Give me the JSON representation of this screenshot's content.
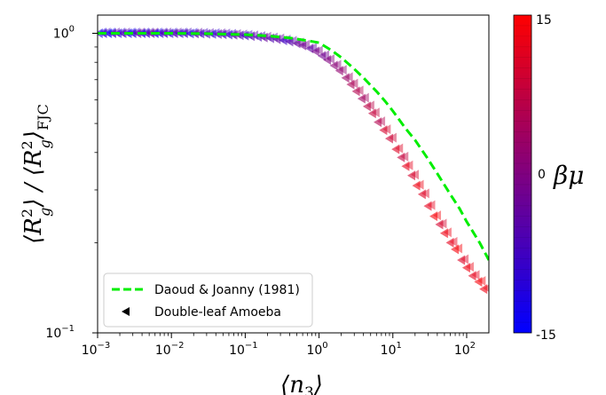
{
  "chart_data": {
    "type": "scatter",
    "xscale": "log",
    "yscale": "log",
    "xlim": [
      0.001,
      200
    ],
    "ylim": [
      0.1,
      1.15
    ],
    "x_ticks": [
      {
        "value": 0.001,
        "base": "10",
        "exp": "−3"
      },
      {
        "value": 0.01,
        "base": "10",
        "exp": "−2"
      },
      {
        "value": 0.1,
        "base": "10",
        "exp": "−1"
      },
      {
        "value": 1,
        "base": "10",
        "exp": "0"
      },
      {
        "value": 10,
        "base": "10",
        "exp": "1"
      },
      {
        "value": 100,
        "base": "10",
        "exp": "2"
      }
    ],
    "y_ticks": [
      {
        "value": 0.1,
        "base": "10",
        "exp": "−1"
      },
      {
        "value": 1,
        "base": "10",
        "exp": "0"
      }
    ],
    "xlabel": "⟨n₃⟩",
    "ylabel": "⟨R²g⟩ / ⟨R²g⟩FJC",
    "grid": false,
    "legend": {
      "placement": "lower-left",
      "entries": [
        {
          "label": "Daoud & Joanny (1981)",
          "style": "dashed-line",
          "color": "#00ee00"
        },
        {
          "label": "Double-leaf Amoeba",
          "style": "left-triangle-marker",
          "color": "#000000"
        }
      ]
    },
    "colorbar": {
      "label": "βμ",
      "min": -15,
      "max": 15,
      "min_label": "-15",
      "mid_label": "0",
      "max_label": "15",
      "colors": [
        "#0000ff",
        "#ff0000"
      ]
    },
    "series": [
      {
        "name": "Daoud & Joanny (1981)",
        "kind": "curve",
        "color": "#00ee00",
        "x": [
          0.001,
          0.003,
          0.01,
          0.03,
          0.1,
          0.2,
          0.4,
          0.7,
          1,
          1.5,
          2,
          3,
          4,
          6,
          8,
          10,
          15,
          20,
          30,
          40,
          60,
          80,
          100,
          150,
          200
        ],
        "y": [
          1.0,
          1.0,
          1.0,
          0.997,
          0.99,
          0.98,
          0.965,
          0.945,
          0.93,
          0.875,
          0.83,
          0.76,
          0.71,
          0.64,
          0.59,
          0.55,
          0.48,
          0.44,
          0.38,
          0.34,
          0.29,
          0.26,
          0.235,
          0.2,
          0.175
        ]
      },
      {
        "name": "Double-leaf Amoeba",
        "kind": "scatter",
        "marker": "left-triangle",
        "x": [
          0.00105,
          0.0012,
          0.0014,
          0.0016,
          0.0019,
          0.0022,
          0.0026,
          0.003,
          0.0035,
          0.004,
          0.0046,
          0.0053,
          0.006,
          0.007,
          0.008,
          0.0095,
          0.011,
          0.013,
          0.015,
          0.018,
          0.021,
          0.025,
          0.03,
          0.036,
          0.043,
          0.05,
          0.06,
          0.07,
          0.085,
          0.1,
          0.12,
          0.15,
          0.18,
          0.22,
          0.27,
          0.33,
          0.4,
          0.5,
          0.6,
          0.75,
          0.9,
          1.1,
          1.3,
          1.6,
          1.9,
          2.3,
          2.7,
          3.2,
          3.8,
          4.5,
          5.3,
          6.3,
          7.5,
          9,
          11,
          13,
          15,
          18,
          21,
          25,
          30,
          36,
          43,
          50,
          60,
          70,
          85,
          100,
          120,
          145,
          170
        ],
        "y": [
          1.0,
          1.0,
          1.0,
          1.0,
          1.0,
          1.0,
          1.0,
          1.0,
          1.0,
          1.0,
          1.0,
          1.0,
          1.0,
          1.0,
          1.0,
          1.0,
          1.0,
          1.0,
          1.0,
          0.998,
          0.998,
          0.997,
          0.996,
          0.995,
          0.994,
          0.992,
          0.99,
          0.988,
          0.985,
          0.982,
          0.978,
          0.973,
          0.968,
          0.962,
          0.955,
          0.947,
          0.938,
          0.925,
          0.91,
          0.89,
          0.87,
          0.84,
          0.815,
          0.78,
          0.75,
          0.71,
          0.675,
          0.64,
          0.605,
          0.57,
          0.54,
          0.505,
          0.475,
          0.445,
          0.41,
          0.385,
          0.36,
          0.335,
          0.31,
          0.29,
          0.265,
          0.245,
          0.23,
          0.215,
          0.2,
          0.19,
          0.175,
          0.165,
          0.155,
          0.148,
          0.14
        ],
        "beta_mu": [
          -12,
          -8,
          -14,
          -5,
          -10,
          -6,
          -13,
          -9,
          -4,
          -11,
          -7,
          -3,
          -12,
          -8,
          -6,
          -10,
          -5,
          -9,
          -7,
          -11,
          -4,
          -8,
          -6,
          -10,
          -5,
          -7,
          -9,
          -4,
          -6,
          -8,
          -5,
          -7,
          -3,
          -6,
          -4,
          -8,
          -5,
          -3,
          -2,
          -4,
          -1,
          -2,
          0,
          1,
          2,
          3,
          5,
          6,
          4,
          7,
          8,
          6,
          10,
          9,
          11,
          8,
          12,
          10,
          13,
          11,
          12,
          14,
          10,
          13,
          12,
          14,
          11,
          13,
          12,
          14,
          13
        ]
      }
    ]
  }
}
